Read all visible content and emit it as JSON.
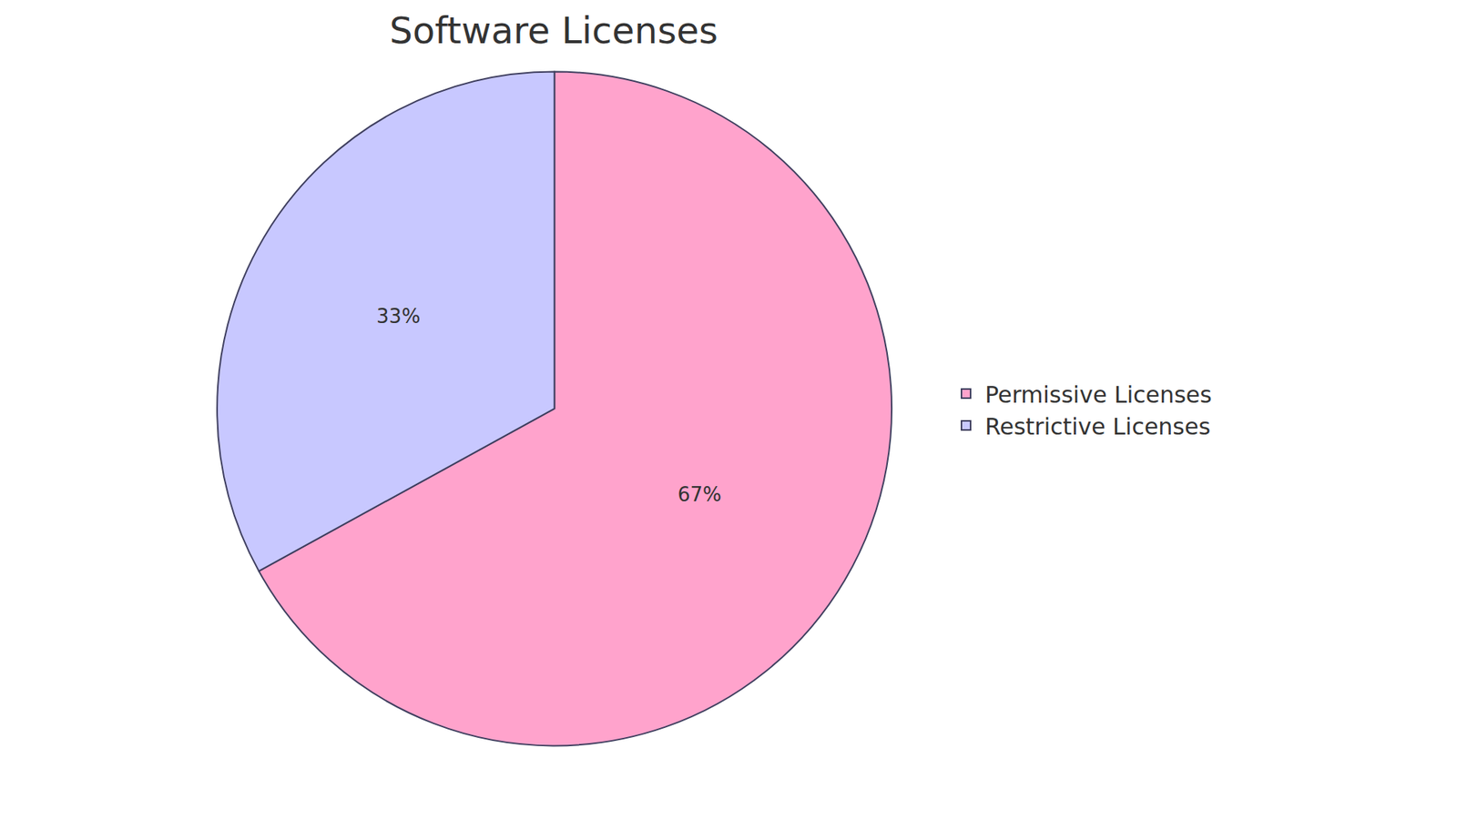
{
  "chart_data": {
    "type": "pie",
    "title": "Software Licenses",
    "categories": [
      "Permissive Licenses",
      "Restrictive Licenses"
    ],
    "values": [
      67,
      33
    ],
    "value_labels": [
      "67%",
      "33%"
    ],
    "colors": [
      "#ffa3cc",
      "#c8c8ff"
    ],
    "data_labels": true,
    "legend": "right"
  }
}
